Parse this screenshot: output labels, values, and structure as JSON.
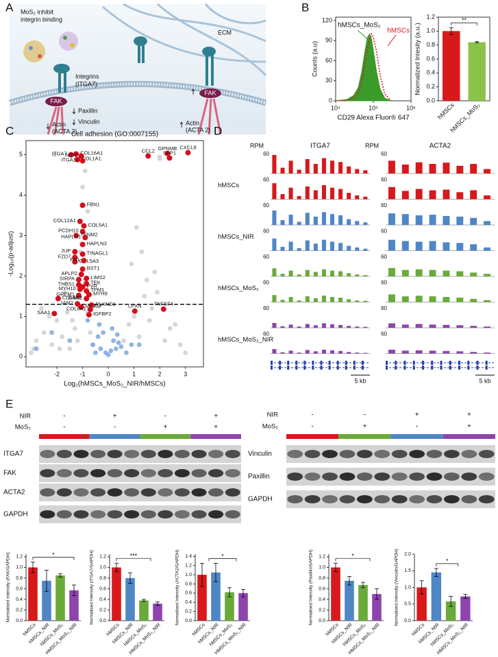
{
  "panel_labels": [
    "A",
    "B",
    "C",
    "D",
    "E"
  ],
  "schematic": {
    "title_lines": [
      "MoS₂ inhibit",
      "integrin binding"
    ],
    "ecm": "ECM",
    "integrin_lines": [
      "Integrins",
      "(ITGA7)"
    ],
    "fak": [
      "FAK",
      "FAK"
    ],
    "paxillin": "Paxillin",
    "vinculin": "Vinculin",
    "actin_left": [
      "Actin",
      "(ACTA 2)"
    ],
    "actin_right": [
      "Actin",
      "(ACTA 2)"
    ]
  },
  "chart_data": [
    {
      "type": "area",
      "x_label": "CD29 Alexa Fluor® 647",
      "y_label": "Counts (a.u)",
      "log_x": true,
      "xlim": [
        10000,
        1000000
      ],
      "xticks": [
        {
          "value": 10000,
          "label": "10⁴"
        },
        {
          "value": 100000,
          "label": "10⁵"
        },
        {
          "value": 1000000,
          "label": "10⁶"
        }
      ],
      "ylim": [
        0,
        125
      ],
      "yticks": [
        0,
        30,
        60,
        90,
        120
      ],
      "x": [
        10000,
        20000,
        30000,
        40000,
        50000,
        60000,
        70000,
        80000,
        90000,
        100000,
        120000,
        150000,
        200000,
        300000
      ],
      "series": [
        {
          "name": "hMSCs_MoS₂",
          "color": "#3a9a2a",
          "fill": true,
          "values": [
            0,
            2,
            8,
            20,
            45,
            75,
            95,
            100,
            92,
            75,
            45,
            18,
            4,
            0
          ]
        },
        {
          "name": "hMSCs",
          "color": "#d7191c",
          "dashed": true,
          "values": [
            0,
            1,
            4,
            12,
            30,
            55,
            78,
            92,
            100,
            95,
            75,
            40,
            10,
            0
          ]
        }
      ]
    },
    {
      "type": "bar",
      "y_label": "Normalized Intesity (a.u.)",
      "categories": [
        "hMSCs",
        "hMSCs_MoS₂"
      ],
      "values": [
        1.0,
        0.84
      ],
      "errors": [
        0.05,
        0.01
      ],
      "colors": [
        "#d7191c",
        "#8bc34a"
      ],
      "ylim": [
        0,
        1.2
      ],
      "yticks": [
        {
          "value": 0,
          "label": "0.0"
        },
        0.2,
        0.4,
        0.6,
        0.8,
        {
          "value": 1,
          "label": "1.0"
        },
        1.2
      ],
      "significance": "**"
    },
    {
      "type": "scatter",
      "title": "Cell adhesion (GO:0007155)",
      "x_label": "Log₂(hMSCs_MoS₂_NIR/hMSCs)",
      "y_label": "-Log₁₀(p-adjust)",
      "xlim": [
        -3.2,
        3.7
      ],
      "xticks": [
        -2,
        -1,
        0,
        1,
        2,
        3
      ],
      "ylim": [
        -0.25,
        5.35
      ],
      "yticks": [
        0,
        1,
        2,
        3,
        4,
        5
      ],
      "threshold": 1.3,
      "series": [
        {
          "color": "#cfcfcf",
          "x": [
            -3.0,
            -2.8,
            -2.5,
            -2.2,
            -2.0,
            -1.8,
            -1.6,
            -1.5,
            -1.3,
            -1.2,
            -2.6,
            -2.3,
            -1.9,
            -1.7,
            -1.4,
            -1.1,
            -0.9,
            -0.8,
            -0.7,
            -0.6,
            0.6,
            0.8,
            1.0,
            1.2,
            1.4,
            1.6,
            1.8,
            2.0,
            2.4,
            2.8,
            3.0,
            1.1,
            1.3,
            1.5,
            2.2,
            2.6,
            -2.1,
            -0.9,
            0.9,
            1.7,
            -1.0,
            -0.8,
            2.0,
            1.9,
            -2.9
          ],
          "values": [
            0.1,
            0.4,
            0.6,
            0.3,
            0.9,
            0.5,
            1.1,
            0.2,
            0.7,
            0.4,
            1.2,
            1.0,
            0.2,
            1.6,
            0.9,
            2.6,
            1.9,
            1.1,
            0.6,
            0.3,
            0.4,
            0.8,
            1.0,
            0.5,
            1.5,
            0.9,
            2.1,
            4.9,
            0.7,
            0.3,
            0.1,
            3.2,
            2.6,
            1.9,
            0.4,
            0.8,
            5.0,
            4.6,
            2.3,
            1.2,
            4.2,
            3.6,
            4.95,
            1.6,
            0.2
          ]
        },
        {
          "color": "#7fa7dc",
          "x": [
            -0.6,
            -0.4,
            -0.3,
            -0.2,
            -0.1,
            0,
            0.1,
            0.2,
            0.3,
            0.4,
            0.5,
            -0.5,
            -0.35,
            0.15,
            0.35,
            -2.8,
            -1.5,
            0.7,
            -0.8,
            0.9,
            -2.2,
            1.2
          ],
          "values": [
            0.3,
            0.5,
            0.2,
            0.6,
            0.1,
            0.05,
            0.15,
            0.4,
            0.2,
            0.35,
            0.25,
            0.1,
            0.8,
            0.7,
            0.55,
            0.2,
            0.4,
            0.1,
            0.9,
            0.3,
            0.6,
            0.3
          ]
        },
        {
          "color": "#d40f1c",
          "labels": [
            "ITGA7",
            "COL16A1",
            "NID2",
            "COL1A1",
            "ITGA11",
            "FBN1",
            "COL12A1",
            "COL5A1",
            "PCDH10",
            "TENM2",
            "HAPLN1",
            "HAPLN3",
            "JUP",
            "TINAGL1",
            "FZD7",
            "COL5A3",
            "FN1",
            "BST1",
            "APLP2",
            "LIMS2",
            "SIRPA",
            "TEK",
            "THBS1",
            "PVR",
            "MYH10",
            "TPM1",
            "GREM1",
            "MYH9",
            "DAG1",
            "COL8A2",
            "JAM2",
            "PLXND1",
            "SAA1",
            "MCAM",
            "COL8A1",
            "IGFBP2",
            "CCL2",
            "GPNMB",
            "SPP1",
            "CXCL8",
            "LPXN",
            "TNFSF4"
          ],
          "x": [
            -1.45,
            -1.25,
            -1.05,
            -1.2,
            -1.0,
            -1.0,
            -1.1,
            -0.95,
            -1.0,
            -1.25,
            -0.9,
            -1.0,
            -1.3,
            -1.0,
            -1.3,
            -1.3,
            -0.95,
            -1.0,
            -1.05,
            -0.85,
            -1.15,
            -0.85,
            -1.15,
            -1.0,
            -1.1,
            -0.85,
            -1.15,
            -0.75,
            -0.85,
            -1.95,
            -1.2,
            -0.65,
            -2.1,
            -1.05,
            -0.7,
            -0.75,
            1.55,
            2.3,
            2.38,
            3.1,
            1.03,
            2.15
          ],
          "values": [
            5.0,
            5.02,
            4.97,
            4.88,
            4.85,
            3.75,
            3.35,
            3.24,
            3.1,
            3.0,
            2.95,
            2.78,
            2.6,
            2.54,
            2.46,
            2.35,
            2.38,
            2.17,
            2.04,
            1.94,
            1.91,
            1.81,
            1.78,
            1.73,
            1.67,
            1.63,
            1.52,
            1.54,
            1.44,
            1.44,
            1.31,
            1.28,
            1.07,
            1.23,
            1.17,
            1.04,
            4.97,
            5.03,
            4.92,
            5.05,
            1.13,
            1.18
          ]
        }
      ]
    },
    {
      "type": "bar",
      "y_label": "Normalised Intensity (FAK/GAPDH)",
      "categories": [
        "hMSCs",
        "hMSCs_NIR",
        "hMSCs_MoS₂",
        "HMSCs_MoS₂_NIR"
      ],
      "values": [
        1.0,
        0.75,
        0.85,
        0.57
      ],
      "errors": [
        0.1,
        0.2,
        0.03,
        0.1
      ],
      "colors": [
        "#d7191c",
        "#4f86c6",
        "#6aaa3a",
        "#8e44ad"
      ],
      "ylim": [
        0,
        1.25
      ],
      "yticks": [
        {
          "value": 0,
          "label": "0.0"
        },
        0.2,
        0.4,
        0.6,
        0.8,
        {
          "value": 1,
          "label": "1.0"
        },
        1.2
      ],
      "significance": "*"
    },
    {
      "type": "bar",
      "y_label": "Normalised Intensity (ITGA7/GAPDH)",
      "categories": [
        "hMSCs",
        "hMSCs_NIR",
        "hMSCs_MoS₂",
        "HMSCs_MoS₂_NIR"
      ],
      "values": [
        1.0,
        0.8,
        0.38,
        0.32
      ],
      "errors": [
        0.08,
        0.1,
        0.02,
        0.03
      ],
      "colors": [
        "#d7191c",
        "#4f86c6",
        "#6aaa3a",
        "#8e44ad"
      ],
      "ylim": [
        0,
        1.25
      ],
      "yticks": [
        {
          "value": 0,
          "label": "0.0"
        },
        0.2,
        0.4,
        0.6,
        0.8,
        {
          "value": 1,
          "label": "1.0"
        },
        1.2
      ],
      "significance": "***"
    },
    {
      "type": "bar",
      "y_label": "Normalised Intensity (ACTA2/GAPDH)",
      "categories": [
        "hMSCs",
        "hMSCs_NIR",
        "hMSCs_MoS₂",
        "HMSCs_MoS₂_NIR"
      ],
      "values": [
        1.0,
        1.05,
        0.62,
        0.6
      ],
      "errors": [
        0.25,
        0.2,
        0.1,
        0.08
      ],
      "colors": [
        "#d7191c",
        "#4f86c6",
        "#6aaa3a",
        "#8e44ad"
      ],
      "ylim": [
        0,
        1.45
      ],
      "yticks": [
        {
          "value": 0,
          "label": "0.0"
        },
        0.2,
        0.4,
        0.6,
        0.8,
        {
          "value": 1,
          "label": "1.0"
        },
        1.2,
        1.4
      ],
      "significance": "*"
    },
    {
      "type": "bar",
      "y_label": "Normalised Intensity (Paxillin/GAPDH)",
      "categories": [
        "hMSCs",
        "hMSCs_NIR",
        "hMSCs_MoS₂",
        "HMSCs_MoS₂_NIR"
      ],
      "values": [
        1.0,
        0.75,
        0.67,
        0.5
      ],
      "errors": [
        0.08,
        0.08,
        0.05,
        0.1
      ],
      "colors": [
        "#d7191c",
        "#4f86c6",
        "#6aaa3a",
        "#8e44ad"
      ],
      "ylim": [
        0,
        1.25
      ],
      "yticks": [
        {
          "value": 0,
          "label": "0.0"
        },
        0.2,
        0.4,
        0.6,
        0.8,
        {
          "value": 1,
          "label": "1.0"
        },
        1.2
      ],
      "significance": "*"
    },
    {
      "type": "bar",
      "y_label": "Normalised Intensity (Vinculin/GAPDH)",
      "categories": [
        "hMSCs",
        "hMSCs_NIR",
        "hMSCs_MoS₂",
        "HMSCs_MoS₂_NIR"
      ],
      "values": [
        1.0,
        1.45,
        0.58,
        0.73
      ],
      "errors": [
        0.2,
        0.12,
        0.15,
        0.06
      ],
      "colors": [
        "#d7191c",
        "#4f86c6",
        "#6aaa3a",
        "#8e44ad"
      ],
      "ylim": [
        0,
        2.0
      ],
      "yticks": [
        {
          "value": 0,
          "label": "0.0"
        },
        0.5,
        {
          "value": 1,
          "label": "1.0"
        },
        1.5,
        {
          "value": 2,
          "label": "2.0"
        }
      ],
      "significance": "*"
    }
  ],
  "tracks": {
    "conditions": [
      "hMSCs",
      "hMSCs_NIR",
      "hMSCs_MoS₂",
      "hMSCs_MoS₂_NIR"
    ],
    "genes": [
      {
        "ylabel": "RPM",
        "name": "ITGA7",
        "scale_bar": "5 kb",
        "rows": [
          {
            "scale": 60,
            "color": "#d7191c",
            "values": [
              58,
              18,
              40,
              12,
              45,
              30,
              48,
              40,
              36,
              22,
              14,
              10
            ]
          },
          {
            "scale": 60,
            "color": "#d7191c",
            "values": [
              50,
              16,
              36,
              10,
              40,
              28,
              44,
              36,
              32,
              20,
              12,
              8
            ]
          },
          {
            "scale": 60,
            "color": "#4f86c6",
            "values": [
              45,
              15,
              32,
              10,
              38,
              26,
              40,
              34,
              30,
              18,
              12,
              8
            ]
          },
          {
            "scale": 60,
            "color": "#4f86c6",
            "values": [
              38,
              12,
              28,
              8,
              32,
              22,
              34,
              28,
              24,
              15,
              10,
              6
            ]
          },
          {
            "scale": 60,
            "color": "#6aaa3a",
            "values": [
              25,
              8,
              18,
              6,
              20,
              14,
              22,
              18,
              16,
              10,
              6,
              4
            ]
          },
          {
            "scale": 60,
            "color": "#6aaa3a",
            "values": [
              22,
              7,
              16,
              5,
              18,
              12,
              20,
              16,
              14,
              9,
              5,
              4
            ]
          },
          {
            "scale": 60,
            "color": "#8e44ad",
            "values": [
              15,
              5,
              10,
              4,
              12,
              8,
              14,
              11,
              9,
              6,
              4,
              3
            ]
          },
          {
            "scale": 60,
            "color": "#8e44ad",
            "values": [
              14,
              4,
              9,
              3,
              11,
              7,
              12,
              10,
              8,
              5,
              3,
              2
            ]
          }
        ]
      },
      {
        "ylabel": "RPM",
        "name": "ACTA2",
        "scale_bar": "5 kb",
        "rows": [
          {
            "scale": 60,
            "color": "#d7191c",
            "values": [
              40,
              28,
              35,
              30,
              34,
              24,
              30,
              14
            ]
          },
          {
            "scale": 60,
            "color": "#d7191c",
            "values": [
              38,
              26,
              32,
              28,
              30,
              22,
              28,
              12
            ]
          },
          {
            "scale": 60,
            "color": "#4f86c6",
            "values": [
              36,
              34,
              30,
              32,
              28,
              26,
              22,
              12
            ]
          },
          {
            "scale": 60,
            "color": "#4f86c6",
            "values": [
              34,
              30,
              28,
              30,
              26,
              24,
              20,
              10
            ]
          },
          {
            "scale": 60,
            "color": "#6aaa3a",
            "values": [
              26,
              20,
              22,
              20,
              18,
              16,
              12,
              8
            ]
          },
          {
            "scale": 60,
            "color": "#6aaa3a",
            "values": [
              24,
              18,
              20,
              18,
              16,
              14,
              10,
              6
            ]
          },
          {
            "scale": 60,
            "color": "#8e44ad",
            "values": [
              14,
              10,
              12,
              10,
              9,
              8,
              6,
              4
            ]
          },
          {
            "scale": 60,
            "color": "#8e44ad",
            "values": [
              12,
              9,
              10,
              9,
              8,
              7,
              5,
              3
            ]
          }
        ]
      }
    ]
  },
  "blots": [
    {
      "treatments": [
        {
          "name": "NIR",
          "signs": [
            "-",
            "+",
            "-",
            "+"
          ]
        },
        {
          "name": "MoS₂",
          "signs": [
            "-",
            "-",
            "+",
            "+"
          ]
        }
      ],
      "group_colors": [
        "#d7191c",
        "#4f86c6",
        "#6aaa3a",
        "#8e44ad"
      ],
      "rows": [
        "ITGA7",
        "FAK",
        "ACTA2",
        "GAPDH"
      ]
    },
    {
      "treatments": [
        {
          "name": "NIR",
          "signs": [
            "-",
            "-",
            "+",
            "+"
          ]
        },
        {
          "name": "MoS₂",
          "signs": [
            "-",
            "+",
            "-",
            "+"
          ]
        }
      ],
      "group_colors": [
        "#d7191c",
        "#6aaa3a",
        "#4f86c6",
        "#8e44ad"
      ],
      "rows": [
        "Vinculin",
        "Paxillin",
        "GAPDH"
      ]
    }
  ]
}
